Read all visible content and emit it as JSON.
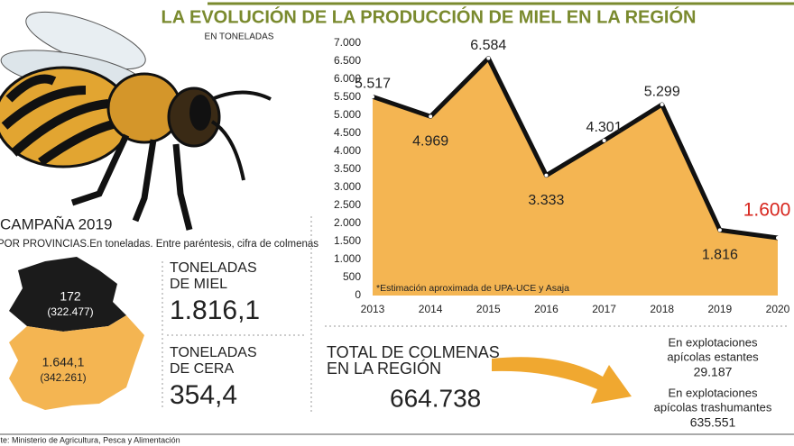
{
  "chart_data": {
    "type": "area",
    "title": "LA EVOLUCIÓN DE LA PRODUCCIÓN DE MIEL EN LA REGIÓN",
    "subtitle": "EN TONELADAS",
    "note": "*Estimación aproximada de UPA-UCE y Asaja",
    "categories": [
      "2013",
      "2014",
      "2015",
      "2016",
      "2017",
      "2018",
      "2019",
      "2020"
    ],
    "values": [
      5517,
      4969,
      6584,
      3333,
      4301,
      5299,
      1816,
      1600
    ],
    "value_labels": [
      "5.517",
      "4.969",
      "6.584",
      "3.333",
      "4.301",
      "5.299",
      "1.816",
      "1.600"
    ],
    "value_label_colors": [
      "#222",
      "#222",
      "#222",
      "#222",
      "#222",
      "#222",
      "#222",
      "#d7261e"
    ],
    "color": "#f4b552",
    "line_color": "#111",
    "ylim": [
      0,
      7000
    ],
    "yticks": [
      0,
      500,
      {
        "value": 1000,
        "label": "1.000"
      },
      {
        "value": 1500,
        "label": "1.500"
      },
      {
        "value": 2000,
        "label": "2.000"
      },
      {
        "value": 2500,
        "label": "2.500"
      },
      {
        "value": 3000,
        "label": "3.000"
      },
      {
        "value": 3500,
        "label": "3.500"
      },
      {
        "value": 4000,
        "label": "4.000"
      },
      {
        "value": 4500,
        "label": "4.500"
      },
      {
        "value": 5000,
        "label": "5.000"
      },
      {
        "value": 5500,
        "label": "5.500"
      },
      {
        "value": 6000,
        "label": "6.000"
      },
      {
        "value": 6500,
        "label": "6.500"
      },
      {
        "value": 7000,
        "label": "7.000"
      }
    ],
    "grid": false
  },
  "campaign": {
    "title": "CAMPAÑA 2019",
    "subtitle": "POR PROVINCIAS.En toneladas. Entre paréntesis, cifra de colmenas",
    "north": {
      "value": "172",
      "hives": "(322.477)"
    },
    "south": {
      "value": "1.644,1",
      "hives": "(342.261)"
    },
    "honey": {
      "label": [
        "TONELADAS",
        "DE MIEL"
      ],
      "value": "1.816,1"
    },
    "wax": {
      "label": [
        "TONELADAS",
        "DE CERA"
      ],
      "value": "354,4"
    }
  },
  "hives": {
    "label": [
      "TOTAL DE COLMENAS",
      "EN LA REGIÓN"
    ],
    "value": "664.738",
    "stationary": {
      "label": [
        "En explotaciones",
        "apícolas estantes"
      ],
      "value": "29.187"
    },
    "migratory": {
      "label": [
        "En explotaciones",
        "apícolas trashumantes"
      ],
      "value": "635.551"
    }
  },
  "source": "Fuente: Ministerio de Agricultura, Pesca y Alimentación"
}
